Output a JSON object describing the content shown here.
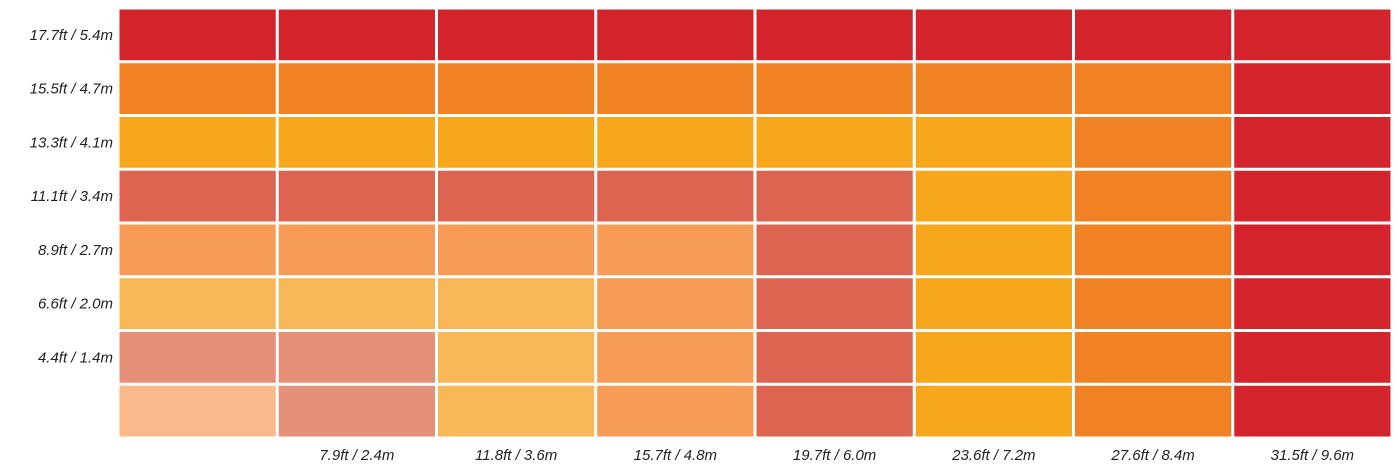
{
  "chart_data": {
    "type": "heatmap",
    "title": "",
    "xlabel": "",
    "ylabel": "",
    "x_tick_labels": [
      "",
      "7.9ft / 2.4m",
      "11.8ft / 3.6m",
      "15.7ft / 4.8m",
      "19.7ft / 6.0m",
      "23.6ft / 7.2m",
      "27.6ft / 8.4m",
      "31.5ft / 9.6m"
    ],
    "y_tick_labels": [
      "17.7ft / 5.4m",
      "15.5ft / 4.7m",
      "13.3ft / 4.1m",
      "11.1ft / 3.4m",
      "8.9ft / 2.7m",
      "6.6ft / 2.0m",
      "4.4ft / 1.4m",
      ""
    ],
    "grid": true,
    "cell_colors": [
      [
        "#d3242b",
        "#d3242b",
        "#d3242b",
        "#d3242b",
        "#d3242b",
        "#d3242b",
        "#d3242b",
        "#d3242b"
      ],
      [
        "#f08223",
        "#f08223",
        "#f08223",
        "#f08223",
        "#f08223",
        "#f08223",
        "#f08223",
        "#d3242b"
      ],
      [
        "#f7a71c",
        "#f7a71c",
        "#f7a71c",
        "#f7a71c",
        "#f7a71c",
        "#f7a71c",
        "#f08223",
        "#d3242b"
      ],
      [
        "#dc6450",
        "#dc6450",
        "#dc6450",
        "#dc6450",
        "#dc6450",
        "#f7a71c",
        "#f08223",
        "#d3242b"
      ],
      [
        "#f79c57",
        "#f79c57",
        "#f79c57",
        "#f79c57",
        "#dc6450",
        "#f7a71c",
        "#f08223",
        "#d3242b"
      ],
      [
        "#f9b858",
        "#f9b858",
        "#f9b858",
        "#f79c57",
        "#dc6450",
        "#f7a71c",
        "#f08223",
        "#d3242b"
      ],
      [
        "#e68f79",
        "#e68f79",
        "#f9b858",
        "#f79c57",
        "#dc6450",
        "#f7a71c",
        "#f08223",
        "#d3242b"
      ],
      [
        "#f9b98a",
        "#e68f79",
        "#f9b858",
        "#f79c57",
        "#dc6450",
        "#f7a71c",
        "#f08223",
        "#d3242b"
      ]
    ]
  }
}
